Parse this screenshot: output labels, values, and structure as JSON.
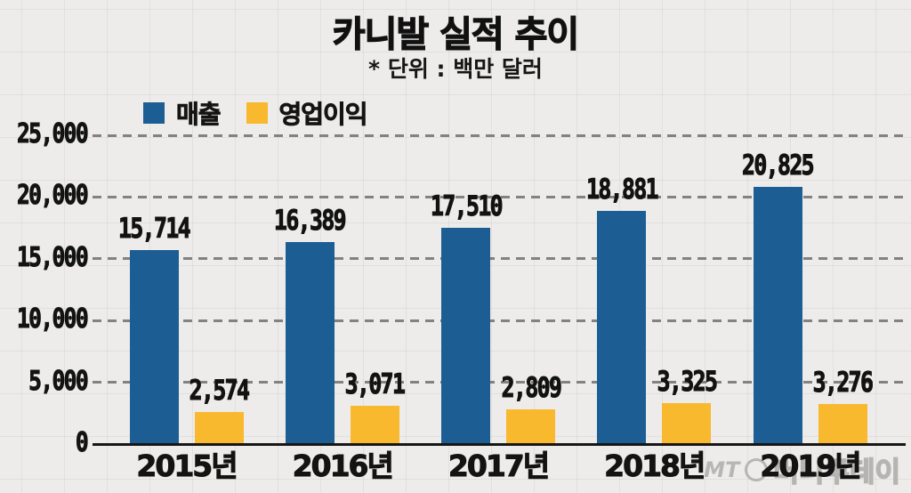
{
  "title": "카니발 실적 추이",
  "subtitle": "* 단위 : 백만 달러",
  "watermark": {
    "prefix": "MT",
    "text": "머니투데이"
  },
  "colors": {
    "revenue_blue": "#1c5e93",
    "profit_yellow": "#f8b92f",
    "axis_black": "#161616",
    "background_paper": "#edecea",
    "gridline_gray": "#696865",
    "watermark_gray": "#b5b4b0"
  },
  "chart_data": {
    "type": "bar",
    "title": "카니발 실적 추이",
    "subtitle": "* 단위 : 백만 달러",
    "unit": "백만 달러 (million USD)",
    "categories": [
      "2015년",
      "2016년",
      "2017년",
      "2018년",
      "2019년"
    ],
    "series": [
      {
        "name": "매출",
        "color": "#1c5e93",
        "values": [
          15714,
          16389,
          17510,
          18881,
          20825
        ],
        "labels": [
          "15,714",
          "16,389",
          "17,510",
          "18,881",
          "20,825"
        ]
      },
      {
        "name": "영업이익",
        "color": "#f8b92f",
        "values": [
          2574,
          3071,
          2809,
          3325,
          3276
        ],
        "labels": [
          "2,574",
          "3,071",
          "2,809",
          "3,325",
          "3,276"
        ]
      }
    ],
    "ylim": [
      0,
      25000
    ],
    "y_ticks": [
      0,
      5000,
      10000,
      15000,
      20000,
      25000
    ],
    "y_tick_labels": [
      "0",
      "5,000",
      "10,000",
      "15,000",
      "20,000",
      "25,000"
    ],
    "grid": "horizontal dashed gridlines at each y tick",
    "legend_position": "top-left",
    "xlabel": "",
    "ylabel": ""
  }
}
